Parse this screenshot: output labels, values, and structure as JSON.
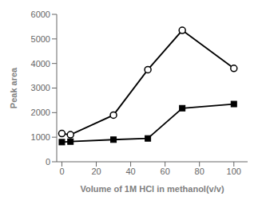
{
  "chart_data": {
    "type": "line",
    "x": [
      0,
      5,
      30,
      50,
      70,
      100
    ],
    "series": [
      {
        "color": "black",
        "marker": "square",
        "values": [
          800,
          820,
          900,
          950,
          2180,
          2350
        ]
      },
      {
        "color": "black",
        "marker": "circle",
        "values": [
          1150,
          1100,
          1900,
          3750,
          5350,
          3800
        ]
      }
    ],
    "x_label": "Volume of 1M HCl in methanol(v/v)",
    "y_label": "Peak area",
    "xlim": [
      -3,
      108
    ],
    "ylim": [
      0,
      6000
    ],
    "xticks": [
      0,
      20,
      40,
      60,
      80,
      100
    ],
    "yticks": [
      0,
      1000,
      2000,
      3000,
      4000,
      5000,
      6000
    ],
    "grid": false
  }
}
